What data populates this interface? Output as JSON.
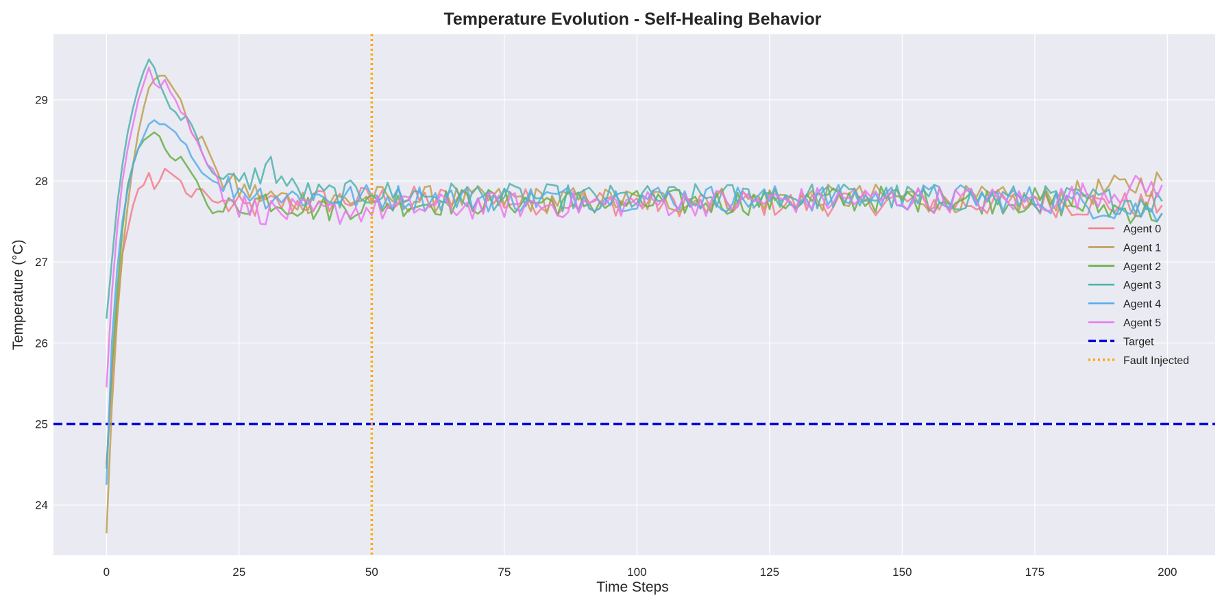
{
  "chart_data": {
    "type": "line",
    "title": "Temperature Evolution - Self-Healing Behavior",
    "xlabel": "Time Steps",
    "ylabel": "Temperature (°C)",
    "xlim": [
      -10,
      209
    ],
    "ylim": [
      23.38,
      29.81
    ],
    "xticks": [
      0,
      25,
      50,
      75,
      100,
      125,
      150,
      175,
      200
    ],
    "yticks": [
      24,
      25,
      26,
      27,
      28,
      29
    ],
    "grid": true,
    "legend_position": "center-right",
    "plot_background": "#eaeaf2",
    "target": {
      "name": "Target",
      "value": 25,
      "color": "#0000dd",
      "style": "dashed"
    },
    "fault": {
      "name": "Fault Injected",
      "x": 50,
      "color": "#ffa500",
      "style": "dotted"
    },
    "noise_amplitude": 0.17,
    "series": [
      {
        "name": "Agent 0",
        "color": "#f37f8c",
        "x": [
          0,
          1,
          2,
          3,
          4,
          5,
          6,
          7,
          8,
          9,
          10,
          11,
          12,
          13,
          14,
          15,
          16,
          17,
          18,
          20,
          25,
          30,
          40,
          50,
          75,
          100,
          125,
          150,
          175,
          199
        ],
        "y": [
          24.5,
          25.5,
          26.4,
          27.1,
          27.4,
          27.7,
          27.9,
          27.95,
          28.1,
          27.9,
          28.0,
          28.15,
          28.1,
          28.05,
          28.0,
          27.85,
          27.8,
          27.9,
          27.9,
          27.75,
          27.65,
          27.7,
          27.75,
          27.78,
          27.75,
          27.73,
          27.72,
          27.75,
          27.72,
          27.7
        ]
      },
      {
        "name": "Agent 1",
        "color": "#c0a050",
        "x": [
          0,
          1,
          2,
          3,
          4,
          5,
          6,
          7,
          8,
          9,
          10,
          11,
          12,
          13,
          14,
          15,
          16,
          17,
          18,
          19,
          20,
          21,
          22,
          25,
          30,
          40,
          50,
          75,
          100,
          125,
          150,
          175,
          199
        ],
        "y": [
          23.65,
          25.2,
          26.3,
          27.1,
          27.7,
          28.2,
          28.6,
          28.9,
          29.15,
          29.25,
          29.3,
          29.3,
          29.2,
          29.1,
          29.0,
          28.8,
          28.6,
          28.5,
          28.55,
          28.4,
          28.25,
          28.1,
          28.0,
          27.9,
          27.8,
          27.75,
          27.78,
          27.77,
          27.75,
          27.78,
          27.8,
          27.75,
          28.0
        ]
      },
      {
        "name": "Agent 2",
        "color": "#66b046",
        "x": [
          0,
          1,
          2,
          3,
          4,
          5,
          6,
          7,
          8,
          9,
          10,
          11,
          12,
          13,
          14,
          15,
          16,
          17,
          18,
          19,
          20,
          22,
          25,
          30,
          40,
          50,
          75,
          100,
          125,
          150,
          175,
          199
        ],
        "y": [
          24.45,
          25.7,
          26.6,
          27.4,
          27.95,
          28.2,
          28.4,
          28.5,
          28.55,
          28.6,
          28.55,
          28.4,
          28.3,
          28.25,
          28.3,
          28.2,
          28.1,
          28.0,
          27.85,
          27.7,
          27.6,
          27.65,
          27.7,
          27.78,
          27.65,
          27.72,
          27.75,
          27.72,
          27.75,
          27.78,
          27.75,
          27.6
        ]
      },
      {
        "name": "Agent 3",
        "color": "#4fb3ae",
        "x": [
          0,
          1,
          2,
          3,
          4,
          5,
          6,
          7,
          8,
          9,
          10,
          11,
          12,
          13,
          14,
          15,
          16,
          17,
          18,
          19,
          20,
          22,
          25,
          28,
          31,
          32,
          35,
          40,
          50,
          75,
          100,
          125,
          150,
          175,
          199
        ],
        "y": [
          26.3,
          27.0,
          27.7,
          28.2,
          28.6,
          28.9,
          29.15,
          29.35,
          29.5,
          29.4,
          29.2,
          29.05,
          28.9,
          28.85,
          28.75,
          28.8,
          28.7,
          28.55,
          28.35,
          28.2,
          28.1,
          28.0,
          27.95,
          28.05,
          28.2,
          28.1,
          27.9,
          27.82,
          27.85,
          27.8,
          27.78,
          27.82,
          27.8,
          27.78,
          27.75
        ]
      },
      {
        "name": "Agent 4",
        "color": "#56adea",
        "x": [
          0,
          1,
          2,
          3,
          4,
          5,
          6,
          7,
          8,
          9,
          10,
          11,
          12,
          13,
          14,
          15,
          16,
          17,
          18,
          19,
          20,
          22,
          25,
          30,
          40,
          50,
          75,
          100,
          125,
          150,
          175,
          199
        ],
        "y": [
          24.25,
          26.0,
          26.9,
          27.5,
          27.9,
          28.2,
          28.4,
          28.55,
          28.7,
          28.75,
          28.7,
          28.7,
          28.65,
          28.6,
          28.5,
          28.45,
          28.3,
          28.2,
          28.1,
          28.05,
          28.0,
          27.95,
          27.9,
          27.82,
          27.8,
          27.8,
          27.78,
          27.8,
          27.78,
          27.8,
          27.78,
          27.6
        ]
      },
      {
        "name": "Agent 5",
        "color": "#ea78ee",
        "x": [
          0,
          1,
          2,
          3,
          4,
          5,
          6,
          7,
          8,
          9,
          10,
          11,
          12,
          13,
          14,
          15,
          16,
          17,
          18,
          19,
          20,
          22,
          25,
          30,
          40,
          50,
          75,
          100,
          125,
          150,
          175,
          199
        ],
        "y": [
          25.45,
          26.6,
          27.4,
          28.0,
          28.4,
          28.7,
          29.0,
          29.2,
          29.4,
          29.2,
          29.15,
          29.25,
          29.1,
          29.0,
          28.85,
          28.8,
          28.6,
          28.5,
          28.35,
          28.2,
          28.15,
          27.9,
          27.7,
          27.62,
          27.6,
          27.65,
          27.7,
          27.72,
          27.75,
          27.78,
          27.75,
          27.95
        ]
      }
    ]
  }
}
